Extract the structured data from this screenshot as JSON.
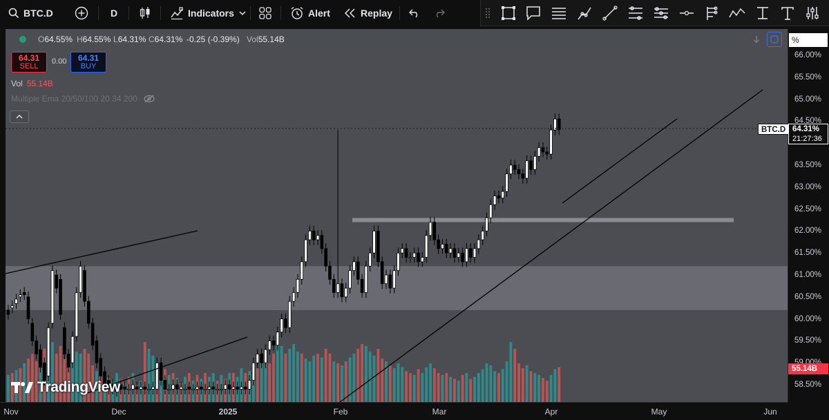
{
  "toolbar": {
    "symbol": "BTC.D",
    "interval": "D",
    "indicators_label": "Indicators",
    "alert_label": "Alert",
    "replay_label": "Replay"
  },
  "drawing_tools": [
    "rectangle-icon",
    "callout-icon",
    "text-lines-icon",
    "path-icon",
    "trend-line-icon",
    "parallel-channel-icon",
    "fib-levels-icon",
    "horizontal-ray-icon",
    "fork-icon",
    "wave-icon",
    "anchored-text-icon",
    "text-icon",
    "settings-sliders-icon"
  ],
  "legend": {
    "o_label": "O",
    "o_value": "64.55%",
    "h_label": "H",
    "h_value": "64.55%",
    "l_label": "L",
    "l_value": "64.31%",
    "c_label": "C",
    "c_value": "64.31%",
    "change": "-0.25 (-0.39%)",
    "vol_label": "Vol",
    "vol_value": "55.14B",
    "sell_price": "64.31",
    "sell_label": "SELL",
    "spread": "0.00",
    "buy_price": "64.31",
    "buy_label": "BUY",
    "volume_label": "Vol",
    "volume_value": "55.14B",
    "ema_label": "Multiple Ema 20/50/100 20 34 200"
  },
  "price_scale": {
    "unit_badge": "%",
    "ticks": [
      "66.00%",
      "65.50%",
      "65.00%",
      "64.50%",
      "63.50%",
      "63.00%",
      "62.50%",
      "62.00%",
      "61.50%",
      "61.00%",
      "60.50%",
      "60.00%",
      "59.50%",
      "59.00%",
      "58.50%"
    ],
    "symbol_tag": "BTC.D",
    "current_price": "64.31%",
    "countdown": "21:27:36",
    "volume_tag": "55.14B"
  },
  "time_scale": {
    "ticks": [
      {
        "label": "Nov",
        "bold": false
      },
      {
        "label": "Dec",
        "bold": false
      },
      {
        "label": "2025",
        "bold": true
      },
      {
        "label": "Feb",
        "bold": false
      },
      {
        "label": "Mar",
        "bold": false
      },
      {
        "label": "Apr",
        "bold": false
      },
      {
        "label": "May",
        "bold": false
      },
      {
        "label": "Jun",
        "bold": false
      }
    ]
  },
  "watermark": "TradingView",
  "colors": {
    "up": "#ffffff",
    "down": "#000000",
    "vol_up": "#2e8b8b",
    "vol_down": "#b85454",
    "zone": "#6a6b72",
    "bg": "#4c4d52",
    "accent": "#2962ff",
    "sell": "#f23645"
  },
  "chart_data": {
    "type": "candlestick",
    "y_unit": "%",
    "ylim": [
      58.3,
      66.3
    ],
    "support_zone": [
      60.2,
      61.2
    ],
    "resistance_zone": [
      62.2,
      62.25
    ],
    "candles": [
      [
        60.2,
        60.1
      ],
      [
        60.25,
        60.3
      ],
      [
        60.35,
        60.45
      ],
      [
        60.5,
        60.55
      ],
      [
        60.6,
        60.55
      ],
      [
        60.5,
        60.0
      ],
      [
        59.9,
        59.5
      ],
      [
        59.5,
        59.2
      ],
      [
        59.3,
        58.9
      ],
      [
        59.0,
        58.6
      ],
      [
        58.7,
        59.8
      ],
      [
        59.9,
        61.1
      ],
      [
        61.0,
        60.7
      ],
      [
        60.9,
        60.1
      ],
      [
        59.8,
        59.2
      ],
      [
        59.2,
        58.9
      ],
      [
        59.0,
        59.6
      ],
      [
        59.6,
        60.6
      ],
      [
        60.6,
        61.2
      ],
      [
        61.1,
        60.4
      ],
      [
        60.4,
        59.9
      ],
      [
        59.9,
        59.4
      ],
      [
        59.5,
        59.0
      ],
      [
        59.1,
        58.7
      ],
      [
        58.8,
        58.5
      ],
      [
        58.6,
        58.4
      ],
      [
        58.5,
        58.4
      ],
      [
        58.4,
        58.35
      ],
      [
        58.5,
        58.4
      ],
      [
        58.45,
        58.4
      ],
      [
        58.4,
        58.4
      ],
      [
        58.4,
        58.5
      ],
      [
        58.45,
        58.4
      ],
      [
        58.4,
        58.45
      ],
      [
        58.45,
        58.4
      ],
      [
        58.4,
        58.4
      ],
      [
        58.4,
        58.45
      ],
      [
        58.4,
        59.0
      ],
      [
        59.0,
        58.6
      ],
      [
        58.6,
        58.4
      ],
      [
        58.4,
        58.4
      ],
      [
        58.4,
        58.5
      ],
      [
        58.5,
        58.4
      ],
      [
        58.4,
        58.45
      ],
      [
        58.4,
        58.4
      ],
      [
        58.45,
        58.4
      ],
      [
        58.4,
        58.4
      ],
      [
        58.4,
        58.45
      ],
      [
        58.45,
        58.4
      ],
      [
        58.4,
        58.4
      ],
      [
        58.4,
        58.45
      ],
      [
        58.45,
        58.4
      ],
      [
        58.4,
        58.4
      ],
      [
        58.4,
        58.4
      ],
      [
        58.4,
        58.5
      ],
      [
        58.5,
        58.4
      ],
      [
        58.4,
        58.45
      ],
      [
        58.45,
        58.4
      ],
      [
        58.4,
        58.45
      ],
      [
        58.45,
        58.4
      ],
      [
        58.4,
        58.6
      ],
      [
        58.6,
        59.0
      ],
      [
        59.0,
        59.2
      ],
      [
        59.2,
        59.0
      ],
      [
        59.0,
        59.3
      ],
      [
        59.3,
        59.5
      ],
      [
        59.5,
        59.4
      ],
      [
        59.4,
        59.7
      ],
      [
        59.7,
        60.0
      ],
      [
        60.0,
        59.8
      ],
      [
        59.8,
        60.4
      ],
      [
        60.4,
        60.6
      ],
      [
        60.6,
        60.9
      ],
      [
        60.9,
        61.3
      ],
      [
        61.3,
        61.8
      ],
      [
        61.8,
        62.0
      ],
      [
        62.0,
        61.8
      ],
      [
        61.8,
        61.9
      ],
      [
        61.9,
        61.6
      ],
      [
        61.6,
        61.2
      ],
      [
        61.2,
        60.9
      ],
      [
        60.9,
        60.6
      ],
      [
        60.6,
        60.8
      ],
      [
        60.8,
        60.5
      ],
      [
        60.5,
        60.7
      ],
      [
        60.7,
        61.1
      ],
      [
        61.1,
        61.3
      ],
      [
        61.3,
        60.9
      ],
      [
        60.9,
        60.6
      ],
      [
        60.6,
        61.2
      ],
      [
        61.2,
        61.5
      ],
      [
        61.5,
        62.0
      ],
      [
        62.0,
        61.3
      ],
      [
        61.3,
        60.8
      ],
      [
        60.8,
        61.0
      ],
      [
        61.0,
        60.7
      ],
      [
        60.7,
        61.1
      ],
      [
        61.1,
        61.5
      ],
      [
        61.5,
        61.6
      ],
      [
        61.6,
        61.4
      ],
      [
        61.4,
        61.4
      ],
      [
        61.4,
        61.5
      ],
      [
        61.5,
        61.3
      ],
      [
        61.3,
        61.4
      ],
      [
        61.4,
        61.9
      ],
      [
        61.9,
        62.2
      ],
      [
        62.2,
        61.8
      ],
      [
        61.8,
        61.6
      ],
      [
        61.6,
        61.7
      ],
      [
        61.7,
        61.5
      ],
      [
        61.5,
        61.6
      ],
      [
        61.6,
        61.4
      ],
      [
        61.4,
        61.5
      ],
      [
        61.5,
        61.3
      ],
      [
        61.3,
        61.6
      ],
      [
        61.6,
        61.4
      ],
      [
        61.4,
        61.6
      ],
      [
        61.6,
        61.8
      ],
      [
        61.8,
        62.0
      ],
      [
        62.0,
        62.3
      ],
      [
        62.3,
        62.6
      ],
      [
        62.6,
        62.8
      ],
      [
        62.8,
        62.75
      ],
      [
        62.75,
        62.9
      ],
      [
        62.9,
        63.3
      ],
      [
        63.3,
        63.5
      ],
      [
        63.5,
        63.4
      ],
      [
        63.4,
        63.3
      ],
      [
        63.3,
        63.2
      ],
      [
        63.2,
        63.6
      ],
      [
        63.6,
        63.4
      ],
      [
        63.4,
        63.7
      ],
      [
        63.7,
        63.9
      ],
      [
        63.9,
        63.8
      ],
      [
        63.8,
        63.75
      ],
      [
        63.75,
        64.3
      ],
      [
        64.3,
        64.55
      ],
      [
        64.55,
        64.31
      ]
    ],
    "volume": [
      [
        0.28,
        1
      ],
      [
        0.3,
        0
      ],
      [
        0.33,
        1
      ],
      [
        0.35,
        0
      ],
      [
        0.4,
        1
      ],
      [
        0.45,
        0
      ],
      [
        0.5,
        0
      ],
      [
        0.42,
        0
      ],
      [
        0.48,
        1
      ],
      [
        0.55,
        0
      ],
      [
        0.6,
        1
      ],
      [
        0.62,
        1
      ],
      [
        0.5,
        0
      ],
      [
        0.58,
        0
      ],
      [
        0.45,
        0
      ],
      [
        0.4,
        0
      ],
      [
        0.42,
        1
      ],
      [
        0.52,
        1
      ],
      [
        0.5,
        1
      ],
      [
        0.55,
        0
      ],
      [
        0.5,
        0
      ],
      [
        0.38,
        0
      ],
      [
        0.32,
        1
      ],
      [
        0.3,
        0
      ],
      [
        0.28,
        1
      ],
      [
        0.25,
        0
      ],
      [
        0.22,
        1
      ],
      [
        0.3,
        1
      ],
      [
        0.24,
        0
      ],
      [
        0.2,
        1
      ],
      [
        0.26,
        0
      ],
      [
        0.3,
        1
      ],
      [
        0.18,
        0
      ],
      [
        0.22,
        1
      ],
      [
        0.62,
        0
      ],
      [
        0.55,
        1
      ],
      [
        0.48,
        1
      ],
      [
        0.4,
        0
      ],
      [
        0.3,
        1
      ],
      [
        0.34,
        0
      ],
      [
        0.28,
        1
      ],
      [
        0.3,
        0
      ],
      [
        0.25,
        1
      ],
      [
        0.2,
        0
      ],
      [
        0.26,
        1
      ],
      [
        0.3,
        0
      ],
      [
        0.22,
        1
      ],
      [
        0.28,
        0
      ],
      [
        0.24,
        1
      ],
      [
        0.3,
        0
      ],
      [
        0.26,
        1
      ],
      [
        0.3,
        1
      ],
      [
        0.22,
        0
      ],
      [
        0.28,
        1
      ],
      [
        0.24,
        0
      ],
      [
        0.3,
        1
      ],
      [
        0.3,
        0
      ],
      [
        0.26,
        1
      ],
      [
        0.35,
        1
      ],
      [
        0.3,
        0
      ],
      [
        0.32,
        1
      ],
      [
        0.38,
        1
      ],
      [
        0.35,
        0
      ],
      [
        0.42,
        1
      ],
      [
        0.48,
        1
      ],
      [
        0.4,
        0
      ],
      [
        0.5,
        0
      ],
      [
        0.62,
        1
      ],
      [
        0.58,
        1
      ],
      [
        0.5,
        0
      ],
      [
        0.55,
        1
      ],
      [
        0.6,
        1
      ],
      [
        0.52,
        1
      ],
      [
        0.5,
        0
      ],
      [
        0.45,
        1
      ],
      [
        0.42,
        1
      ],
      [
        0.48,
        1
      ],
      [
        0.5,
        0
      ],
      [
        0.46,
        1
      ],
      [
        0.55,
        0
      ],
      [
        0.5,
        0
      ],
      [
        0.42,
        1
      ],
      [
        0.4,
        0
      ],
      [
        0.38,
        1
      ],
      [
        0.42,
        0
      ],
      [
        0.46,
        1
      ],
      [
        0.5,
        1
      ],
      [
        0.55,
        0
      ],
      [
        0.6,
        0
      ],
      [
        0.58,
        1
      ],
      [
        0.52,
        1
      ],
      [
        0.48,
        1
      ],
      [
        0.55,
        0
      ],
      [
        0.45,
        0
      ],
      [
        0.42,
        1
      ],
      [
        0.38,
        0
      ],
      [
        0.35,
        1
      ],
      [
        0.4,
        1
      ],
      [
        0.36,
        1
      ],
      [
        0.32,
        0
      ],
      [
        0.3,
        0
      ],
      [
        0.28,
        1
      ],
      [
        0.34,
        0
      ],
      [
        0.3,
        1
      ],
      [
        0.36,
        1
      ],
      [
        0.4,
        1
      ],
      [
        0.35,
        0
      ],
      [
        0.3,
        0
      ],
      [
        0.28,
        1
      ],
      [
        0.3,
        0
      ],
      [
        0.26,
        1
      ],
      [
        0.24,
        0
      ],
      [
        0.22,
        1
      ],
      [
        0.28,
        0
      ],
      [
        0.3,
        1
      ],
      [
        0.24,
        0
      ],
      [
        0.26,
        1
      ],
      [
        0.3,
        1
      ],
      [
        0.34,
        1
      ],
      [
        0.4,
        1
      ],
      [
        0.38,
        1
      ],
      [
        0.32,
        1
      ],
      [
        0.3,
        0
      ],
      [
        0.34,
        1
      ],
      [
        0.42,
        1
      ],
      [
        0.62,
        1
      ],
      [
        0.55,
        0
      ],
      [
        0.4,
        0
      ],
      [
        0.35,
        0
      ],
      [
        0.38,
        1
      ],
      [
        0.32,
        0
      ],
      [
        0.3,
        1
      ],
      [
        0.28,
        1
      ],
      [
        0.25,
        0
      ],
      [
        0.22,
        0
      ],
      [
        0.28,
        1
      ],
      [
        0.34,
        1
      ],
      [
        0.36,
        0
      ]
    ]
  }
}
